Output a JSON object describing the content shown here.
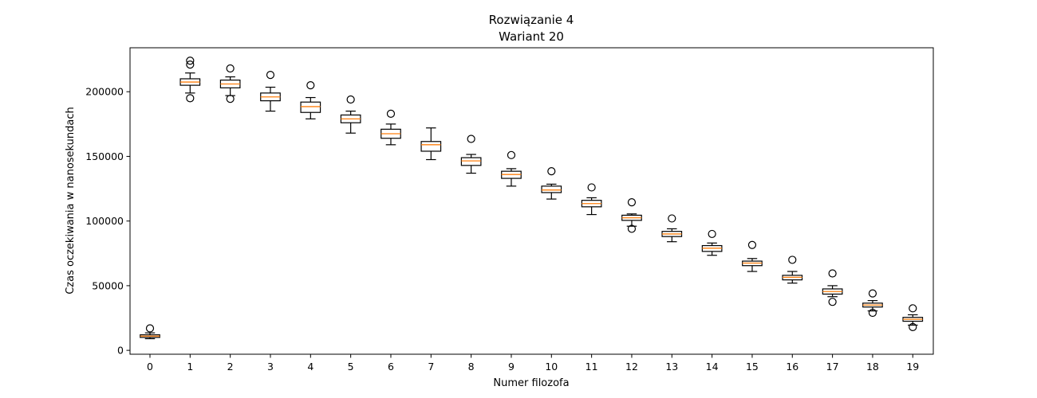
{
  "chart_data": {
    "type": "box",
    "title": [
      "Rozwiązanie 4",
      "Wariant 20"
    ],
    "xlabel": "Numer filozofa",
    "ylabel": "Czas oczekiwania w nanosekundach",
    "categories": [
      "0",
      "1",
      "2",
      "3",
      "4",
      "5",
      "6",
      "7",
      "8",
      "9",
      "10",
      "11",
      "12",
      "13",
      "14",
      "15",
      "16",
      "17",
      "18",
      "19"
    ],
    "yticks": [
      0,
      50000,
      100000,
      150000,
      200000
    ],
    "ytick_labels": [
      "0",
      "50000",
      "100000",
      "150000",
      "200000"
    ],
    "ylim": [
      -3000,
      234000
    ],
    "grid": false,
    "boxes": [
      {
        "whisker_low": 9000,
        "q1": 10000,
        "median": 11000,
        "q3": 12000,
        "whisker_high": 13500,
        "outliers": [
          17000
        ]
      },
      {
        "whisker_low": 199000,
        "q1": 205000,
        "median": 207500,
        "q3": 210000,
        "whisker_high": 214500,
        "outliers": [
          195000,
          221000,
          224000
        ]
      },
      {
        "whisker_low": 197000,
        "q1": 203000,
        "median": 206000,
        "q3": 209000,
        "whisker_high": 211500,
        "outliers": [
          194500,
          218000
        ]
      },
      {
        "whisker_low": 185000,
        "q1": 193000,
        "median": 196000,
        "q3": 199000,
        "whisker_high": 203500,
        "outliers": [
          213000
        ]
      },
      {
        "whisker_low": 179000,
        "q1": 184000,
        "median": 188500,
        "q3": 192000,
        "whisker_high": 195500,
        "outliers": [
          205000
        ]
      },
      {
        "whisker_low": 168000,
        "q1": 176000,
        "median": 179000,
        "q3": 182000,
        "whisker_high": 185000,
        "outliers": [
          194000
        ]
      },
      {
        "whisker_low": 159000,
        "q1": 164000,
        "median": 167500,
        "q3": 171000,
        "whisker_high": 175000,
        "outliers": [
          183000
        ]
      },
      {
        "whisker_low": 147500,
        "q1": 154000,
        "median": 159000,
        "q3": 161500,
        "whisker_high": 172000,
        "outliers": []
      },
      {
        "whisker_low": 137000,
        "q1": 143000,
        "median": 146500,
        "q3": 149000,
        "whisker_high": 151500,
        "outliers": [
          163500
        ]
      },
      {
        "whisker_low": 127000,
        "q1": 133000,
        "median": 136000,
        "q3": 138500,
        "whisker_high": 140500,
        "outliers": [
          151000
        ]
      },
      {
        "whisker_low": 117000,
        "q1": 122000,
        "median": 124000,
        "q3": 127000,
        "whisker_high": 128500,
        "outliers": [
          138500
        ]
      },
      {
        "whisker_low": 105000,
        "q1": 111000,
        "median": 113500,
        "q3": 116000,
        "whisker_high": 118000,
        "outliers": [
          126000
        ]
      },
      {
        "whisker_low": 96000,
        "q1": 100500,
        "median": 102500,
        "q3": 104500,
        "whisker_high": 105500,
        "outliers": [
          94000,
          114500
        ]
      },
      {
        "whisker_low": 84000,
        "q1": 88000,
        "median": 90000,
        "q3": 92000,
        "whisker_high": 94000,
        "outliers": [
          102000
        ]
      },
      {
        "whisker_low": 73500,
        "q1": 76500,
        "median": 79000,
        "q3": 81000,
        "whisker_high": 83000,
        "outliers": [
          90000
        ]
      },
      {
        "whisker_low": 61000,
        "q1": 65500,
        "median": 67500,
        "q3": 69000,
        "whisker_high": 71000,
        "outliers": [
          81500
        ]
      },
      {
        "whisker_low": 52000,
        "q1": 54500,
        "median": 56500,
        "q3": 58000,
        "whisker_high": 61000,
        "outliers": [
          70000
        ]
      },
      {
        "whisker_low": 41500,
        "q1": 43500,
        "median": 45500,
        "q3": 47500,
        "whisker_high": 50000,
        "outliers": [
          37500,
          59500
        ]
      },
      {
        "whisker_low": 30500,
        "q1": 33500,
        "median": 35000,
        "q3": 36500,
        "whisker_high": 38500,
        "outliers": [
          29000,
          44000
        ]
      },
      {
        "whisker_low": 19500,
        "q1": 22500,
        "median": 24000,
        "q3": 25500,
        "whisker_high": 27500,
        "outliers": [
          18000,
          32500
        ]
      }
    ],
    "colors": {
      "box": "#000000",
      "median": "#ff7f0e",
      "axes": "#000000",
      "background": "#ffffff"
    }
  }
}
